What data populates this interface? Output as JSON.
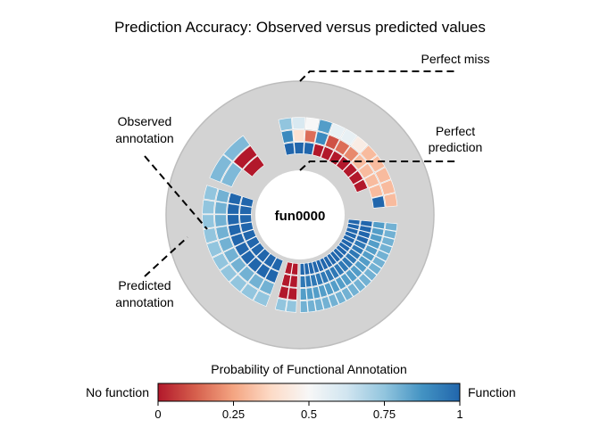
{
  "title": "Prediction Accuracy: Observed versus predicted values",
  "center_label": "fun0000",
  "annotations": {
    "perfect_miss": "Perfect miss",
    "perfect_prediction_line1": "Perfect",
    "perfect_prediction_line2": "prediction",
    "observed_line1": "Observed",
    "observed_line2": "annotation",
    "predicted_line1": "Predicted",
    "predicted_line2": "annotation"
  },
  "legend": {
    "title": "Probability of Functional Annotation",
    "left_label": "No function",
    "right_label": "Function",
    "ticks": [
      "0",
      "0.25",
      "0.5",
      "0.75",
      "1"
    ],
    "tick_values": [
      0,
      0.25,
      0.5,
      0.75,
      1
    ]
  },
  "colors": {
    "disk": "#d3d3d3",
    "disk_edge": "#bdbdbd",
    "scale": [
      "#b2182b",
      "#d6604d",
      "#f4a582",
      "#fddbc7",
      "#f7f7f7",
      "#d1e5f0",
      "#92c5de",
      "#4393c3",
      "#2166ac"
    ]
  },
  "chart_data": {
    "type": "radial-segment-diagram",
    "value_meaning": "probability of functional annotation (0 = no function, 1 = function)",
    "groups": [
      {
        "name": "",
        "angle_deg": [
          200,
          288
        ],
        "count": 10,
        "layers": [
          {
            "role": "observed",
            "values": [
              1,
              1,
              1,
              1,
              1,
              1,
              1,
              1,
              1,
              1
            ]
          },
          {
            "role": "predicted",
            "values": [
              1,
              1,
              1,
              1,
              1,
              1,
              1,
              1,
              1,
              1
            ]
          },
          {
            "role": "predicted",
            "values": [
              0.8,
              0.8,
              0.8,
              0.8,
              0.8,
              0.8,
              0.8,
              0.8,
              0.8,
              0.8
            ]
          },
          {
            "role": "predicted",
            "values": [
              0.75,
              0.75,
              0.75,
              0.75,
              0.75,
              0.75,
              0.75,
              0.75,
              0.75,
              0.75
            ]
          }
        ]
      },
      {
        "name": "",
        "angle_deg": [
          292,
          341
        ],
        "count": 3,
        "layers": [
          {
            "role": "observed",
            "values": [
              null,
              null,
              null
            ]
          },
          {
            "role": "predicted",
            "values": [
              null,
              0,
              null
            ]
          },
          {
            "role": "predicted",
            "values": [
              0.78,
              0,
              null
            ]
          },
          {
            "role": "predicted",
            "values": [
              0.78,
              0.78,
              null
            ]
          }
        ]
      },
      {
        "name": "",
        "angle_deg": [
          347,
          85
        ],
        "count": 12,
        "layers": [
          {
            "role": "observed",
            "values": [
              null,
              null,
              null,
              null,
              null,
              null,
              null,
              null,
              null,
              null,
              null,
              null
            ]
          },
          {
            "role": "predicted",
            "values": [
              1,
              1,
              1,
              0,
              0,
              0,
              0,
              0,
              0,
              0,
              null,
              null
            ]
          },
          {
            "role": "predicted",
            "values": [
              0.9,
              0.4,
              0.15,
              0.9,
              0.1,
              0.15,
              0.2,
              0.3,
              0.3,
              0.3,
              0.3,
              1
            ]
          },
          {
            "role": "predicted",
            "values": [
              0.75,
              0.6,
              0.5,
              0.85,
              0.55,
              0.55,
              0.45,
              0.3,
              0.3,
              0.3,
              0.3,
              0.3
            ]
          }
        ]
      },
      {
        "name": "",
        "angle_deg": [
          95,
          180
        ],
        "count": 18,
        "layers": [
          {
            "role": "observed",
            "values": [
              1,
              1,
              1,
              1,
              1,
              1,
              1,
              1,
              1,
              1,
              1,
              1,
              1,
              1,
              1,
              1,
              1,
              1
            ]
          },
          {
            "role": "predicted",
            "values": [
              1,
              1,
              1,
              1,
              0.95,
              0.95,
              0.95,
              0.95,
              0.95,
              0.95,
              0.95,
              0.95,
              0.95,
              0.95,
              0.95,
              0.95,
              0.95,
              0.95
            ]
          },
          {
            "role": "predicted",
            "values": [
              0.85,
              0.85,
              0.85,
              0.85,
              0.85,
              0.85,
              0.85,
              0.85,
              0.85,
              0.85,
              0.85,
              0.85,
              0.85,
              0.85,
              0.85,
              0.85,
              0.85,
              0.85
            ]
          },
          {
            "role": "predicted",
            "values": [
              0.8,
              0.8,
              0.8,
              0.8,
              0.8,
              0.8,
              0.8,
              0.8,
              0.8,
              0.8,
              0.8,
              0.8,
              0.8,
              0.8,
              0.8,
              0.8,
              0.8,
              0.8
            ]
          }
        ]
      },
      {
        "name": "",
        "angle_deg": [
          182,
          195
        ],
        "count": 2,
        "layers": [
          {
            "role": "observed",
            "values": [
              0,
              0
            ]
          },
          {
            "role": "predicted",
            "values": [
              0,
              0
            ]
          },
          {
            "role": "predicted",
            "values": [
              0,
              0
            ]
          },
          {
            "role": "predicted",
            "values": [
              0.75,
              0.75
            ]
          }
        ]
      }
    ]
  }
}
